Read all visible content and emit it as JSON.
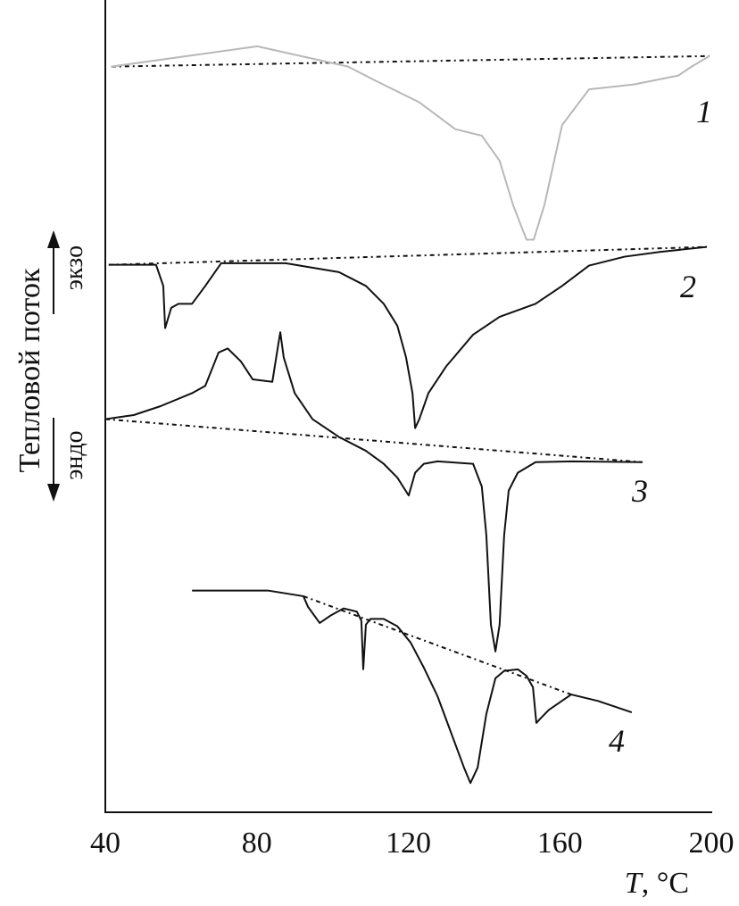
{
  "chart_data": {
    "type": "line",
    "xlabel_var": "T",
    "xlabel_unit": ", °C",
    "ylabel": "Тепловой поток",
    "exo_label": "экзо",
    "endo_label": "эндо",
    "xlim": [
      40,
      200
    ],
    "ylim": [
      0,
      100
    ],
    "x_ticks": [
      "40",
      "80",
      "120",
      "160",
      "200"
    ],
    "grid": false,
    "series": [
      {
        "label": "1",
        "color": "#b8b8b8",
        "points": [
          [
            41.6,
            91.8
          ],
          [
            80.1,
            94.3
          ],
          [
            104.1,
            91.8
          ],
          [
            111.2,
            90.1
          ],
          [
            122.9,
            87.4
          ],
          [
            132.4,
            84.1
          ],
          [
            139.4,
            83.3
          ],
          [
            144.1,
            80.2
          ],
          [
            147.7,
            74.7
          ],
          [
            151.2,
            70.5
          ],
          [
            153.1,
            70.5
          ],
          [
            155.9,
            74.7
          ],
          [
            160.6,
            84.6
          ],
          [
            167.7,
            89.0
          ],
          [
            179.5,
            89.6
          ],
          [
            191.3,
            90.7
          ],
          [
            194.8,
            91.8
          ],
          [
            199.5,
            93.1
          ]
        ],
        "baseline": [
          [
            41.6,
            91.8
          ],
          [
            199.5,
            93.1
          ]
        ]
      },
      {
        "label": "2",
        "color": "#111111",
        "points": [
          [
            40.9,
            67.4
          ],
          [
            53.4,
            67.4
          ],
          [
            55.3,
            64.8
          ],
          [
            55.8,
            59.6
          ],
          [
            57.4,
            62.1
          ],
          [
            59.3,
            62.6
          ],
          [
            62.9,
            62.6
          ],
          [
            66.4,
            64.8
          ],
          [
            70.6,
            67.6
          ],
          [
            87.6,
            67.6
          ],
          [
            101.7,
            66.5
          ],
          [
            108.8,
            64.8
          ],
          [
            113.5,
            62.6
          ],
          [
            117.1,
            59.9
          ],
          [
            119.4,
            56.0
          ],
          [
            121.1,
            51.6
          ],
          [
            121.8,
            47.3
          ],
          [
            122.9,
            48.4
          ],
          [
            125.3,
            51.6
          ],
          [
            130.0,
            54.9
          ],
          [
            137.1,
            58.8
          ],
          [
            144.1,
            61.0
          ],
          [
            153.6,
            62.6
          ],
          [
            160.6,
            64.8
          ],
          [
            167.7,
            67.3
          ],
          [
            177.1,
            68.4
          ],
          [
            186.6,
            69.0
          ],
          [
            198.8,
            69.6
          ]
        ],
        "baseline": [
          [
            40.9,
            67.4
          ],
          [
            198.8,
            69.6
          ]
        ]
      },
      {
        "label": "3",
        "color": "#111111",
        "points": [
          [
            40.0,
            48.4
          ],
          [
            47.5,
            48.9
          ],
          [
            54.6,
            50.0
          ],
          [
            62.9,
            51.6
          ],
          [
            66.4,
            52.5
          ],
          [
            69.9,
            56.6
          ],
          [
            72.3,
            57.1
          ],
          [
            75.8,
            55.5
          ],
          [
            78.9,
            53.3
          ],
          [
            84.1,
            53.0
          ],
          [
            85.7,
            57.7
          ],
          [
            86.2,
            59.1
          ],
          [
            87.1,
            56.0
          ],
          [
            90.0,
            51.6
          ],
          [
            94.7,
            48.4
          ],
          [
            101.7,
            46.2
          ],
          [
            108.8,
            44.5
          ],
          [
            113.5,
            42.9
          ],
          [
            117.1,
            41.2
          ],
          [
            120.1,
            39.0
          ],
          [
            121.8,
            41.8
          ],
          [
            124.1,
            42.9
          ],
          [
            127.7,
            43.2
          ],
          [
            137.1,
            42.9
          ],
          [
            139.4,
            40.1
          ],
          [
            140.6,
            34.1
          ],
          [
            141.8,
            23.1
          ],
          [
            143.0,
            19.8
          ],
          [
            144.1,
            23.1
          ],
          [
            145.3,
            34.1
          ],
          [
            146.5,
            39.6
          ],
          [
            148.9,
            41.8
          ],
          [
            153.6,
            43.1
          ],
          [
            163.0,
            43.2
          ],
          [
            181.8,
            43.1
          ]
        ],
        "baseline": [
          [
            40.0,
            48.4
          ],
          [
            181.8,
            43.1
          ]
        ]
      },
      {
        "label": "4",
        "color": "#111111",
        "points": [
          [
            62.9,
            27.3
          ],
          [
            82.9,
            27.3
          ],
          [
            92.3,
            26.6
          ],
          [
            93.5,
            25.3
          ],
          [
            96.6,
            23.3
          ],
          [
            99.4,
            24.2
          ],
          [
            102.9,
            25.1
          ],
          [
            106.4,
            24.7
          ],
          [
            107.6,
            23.6
          ],
          [
            108.1,
            17.6
          ],
          [
            108.8,
            23.1
          ],
          [
            110.0,
            23.8
          ],
          [
            113.5,
            23.8
          ],
          [
            117.1,
            22.9
          ],
          [
            120.6,
            20.9
          ],
          [
            124.1,
            17.8
          ],
          [
            127.7,
            14.3
          ],
          [
            131.2,
            9.9
          ],
          [
            134.7,
            5.5
          ],
          [
            136.4,
            3.6
          ],
          [
            138.3,
            5.5
          ],
          [
            140.6,
            12.1
          ],
          [
            143.0,
            16.5
          ],
          [
            145.3,
            17.4
          ],
          [
            148.9,
            17.6
          ],
          [
            151.2,
            16.8
          ],
          [
            152.9,
            15.4
          ],
          [
            153.8,
            11.0
          ],
          [
            154.8,
            11.5
          ],
          [
            157.1,
            12.6
          ],
          [
            163.0,
            14.5
          ],
          [
            170.1,
            13.7
          ],
          [
            179.0,
            12.3
          ]
        ],
        "baseline": [
          [
            92.3,
            26.6
          ],
          [
            163.0,
            14.5
          ]
        ]
      }
    ]
  }
}
